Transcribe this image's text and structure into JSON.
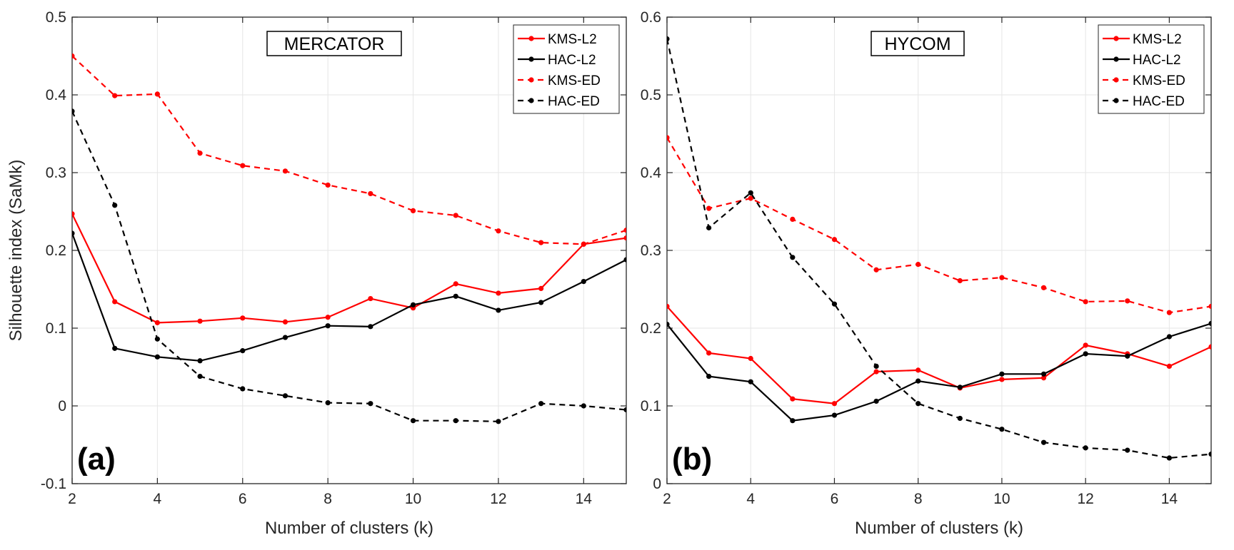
{
  "shared": {
    "ylabel": "Silhouette index (SaMk)",
    "xlabel": "Number of clusters (k)",
    "x": [
      2,
      3,
      4,
      5,
      6,
      7,
      8,
      9,
      10,
      11,
      12,
      13,
      14,
      15
    ],
    "xticks": [
      2,
      4,
      6,
      8,
      10,
      12,
      14
    ],
    "colors": {
      "kms": "#ff0000",
      "hac": "#000000",
      "grid": "#e6e6e6",
      "axis": "#262626"
    }
  },
  "chart_data": [
    {
      "type": "line",
      "title": "MERCATOR",
      "tag": "(a)",
      "xlabel": "Number of clusters (k)",
      "ylabel": "Silhouette index (SaMk)",
      "xlim": [
        2,
        15
      ],
      "ylim": [
        -0.1,
        0.5
      ],
      "yticks": [
        -0.1,
        0,
        0.1,
        0.2,
        0.3,
        0.4,
        0.5
      ],
      "ytick_labels": [
        "-0.1",
        "0",
        "0.1",
        "0.2",
        "0.3",
        "0.4",
        "0.5"
      ],
      "x": [
        2,
        3,
        4,
        5,
        6,
        7,
        8,
        9,
        10,
        11,
        12,
        13,
        14,
        15
      ],
      "legend_position": "top-right",
      "series": [
        {
          "name": "KMS-L2",
          "style": "solid",
          "color": "#ff0000",
          "values": [
            0.247,
            0.134,
            0.107,
            0.109,
            0.113,
            0.108,
            0.114,
            0.138,
            0.126,
            0.157,
            0.145,
            0.151,
            0.208,
            0.216
          ]
        },
        {
          "name": "HAC-L2",
          "style": "solid",
          "color": "#000000",
          "values": [
            0.222,
            0.074,
            0.063,
            0.058,
            0.071,
            0.088,
            0.103,
            0.102,
            0.13,
            0.141,
            0.123,
            0.133,
            0.16,
            0.188
          ]
        },
        {
          "name": "KMS-ED",
          "style": "dashed",
          "color": "#ff0000",
          "values": [
            0.45,
            0.399,
            0.401,
            0.325,
            0.309,
            0.302,
            0.284,
            0.273,
            0.251,
            0.245,
            0.225,
            0.21,
            0.208,
            0.226
          ]
        },
        {
          "name": "HAC-ED",
          "style": "dashed",
          "color": "#000000",
          "values": [
            0.379,
            0.258,
            0.086,
            0.038,
            0.022,
            0.013,
            0.004,
            0.003,
            -0.019,
            -0.019,
            -0.02,
            0.003,
            0.0,
            -0.005
          ]
        }
      ]
    },
    {
      "type": "line",
      "title": "HYCOM",
      "tag": "(b)",
      "xlabel": "Number of clusters (k)",
      "ylabel": "",
      "xlim": [
        2,
        15
      ],
      "ylim": [
        0,
        0.6
      ],
      "yticks": [
        0,
        0.1,
        0.2,
        0.3,
        0.4,
        0.5,
        0.6
      ],
      "ytick_labels": [
        "0",
        "0.1",
        "0.2",
        "0.3",
        "0.4",
        "0.5",
        "0.6"
      ],
      "x": [
        2,
        3,
        4,
        5,
        6,
        7,
        8,
        9,
        10,
        11,
        12,
        13,
        14,
        15
      ],
      "legend_position": "top-right",
      "series": [
        {
          "name": "KMS-L2",
          "style": "solid",
          "color": "#ff0000",
          "values": [
            0.228,
            0.168,
            0.161,
            0.109,
            0.103,
            0.144,
            0.146,
            0.123,
            0.134,
            0.136,
            0.178,
            0.167,
            0.151,
            0.176
          ]
        },
        {
          "name": "HAC-L2",
          "style": "solid",
          "color": "#000000",
          "values": [
            0.205,
            0.138,
            0.131,
            0.081,
            0.088,
            0.106,
            0.132,
            0.124,
            0.141,
            0.141,
            0.167,
            0.164,
            0.189,
            0.206
          ]
        },
        {
          "name": "KMS-ED",
          "style": "dashed",
          "color": "#ff0000",
          "values": [
            0.445,
            0.354,
            0.367,
            0.34,
            0.314,
            0.275,
            0.282,
            0.261,
            0.265,
            0.252,
            0.234,
            0.235,
            0.22,
            0.228
          ]
        },
        {
          "name": "HAC-ED",
          "style": "dashed",
          "color": "#000000",
          "values": [
            0.572,
            0.329,
            0.374,
            0.291,
            0.231,
            0.151,
            0.103,
            0.084,
            0.07,
            0.053,
            0.046,
            0.043,
            0.033,
            0.038
          ]
        }
      ]
    }
  ]
}
